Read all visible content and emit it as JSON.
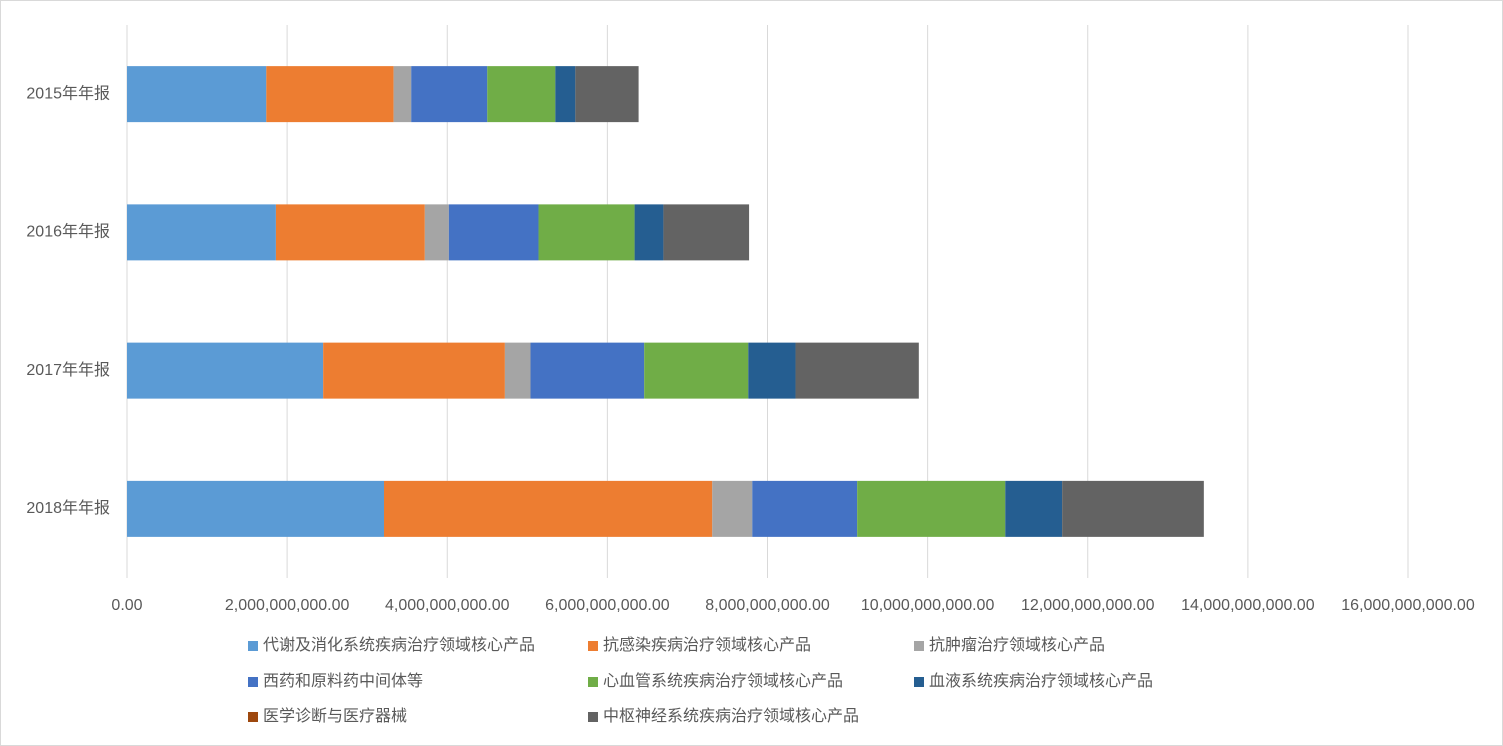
{
  "chart_data": {
    "type": "stacked-bar-horizontal",
    "categories": [
      "2015年年报",
      "2016年年报",
      "2017年年报",
      "2018年年报"
    ],
    "series": [
      {
        "name": "代谢及消化系统疾病治疗领域核心产品",
        "color": "#5b9bd5",
        "values": [
          1740000000,
          1860000000,
          2450000000,
          3210000000
        ]
      },
      {
        "name": "抗感染疾病治疗领域核心产品",
        "color": "#ed7d31",
        "values": [
          1590000000,
          1860000000,
          2270000000,
          4100000000
        ]
      },
      {
        "name": "抗肿瘤治疗领域核心产品",
        "color": "#a5a5a5",
        "values": [
          220000000,
          300000000,
          320000000,
          500000000
        ]
      },
      {
        "name": "西药和原料药中间体等",
        "color": "#4472c4",
        "values": [
          950000000,
          1120000000,
          1420000000,
          1310000000
        ]
      },
      {
        "name": "心血管系统疾病治疗领域核心产品",
        "color": "#70ad47",
        "values": [
          850000000,
          1200000000,
          1300000000,
          1850000000
        ]
      },
      {
        "name": "血液系统疾病治疗领域核心产品",
        "color": "#255e91",
        "values": [
          250000000,
          360000000,
          590000000,
          710000000
        ]
      },
      {
        "name": "医学诊断与医疗器械",
        "color": "#9e480e",
        "values": [
          0,
          0,
          0,
          0
        ]
      },
      {
        "name": "中枢神经系统疾病治疗领域核心产品",
        "color": "#636363",
        "values": [
          790000000,
          1070000000,
          1540000000,
          1770000000
        ]
      }
    ],
    "xlim": [
      0,
      16000000000
    ],
    "xticks": [
      {
        "value": 0,
        "label": "0.00"
      },
      {
        "value": 2000000000,
        "label": "2,000,000,000.00"
      },
      {
        "value": 4000000000,
        "label": "4,000,000,000.00"
      },
      {
        "value": 6000000000,
        "label": "6,000,000,000.00"
      },
      {
        "value": 8000000000,
        "label": "8,000,000,000.00"
      },
      {
        "value": 10000000000,
        "label": "10,000,000,000.00"
      },
      {
        "value": 12000000000,
        "label": "12,000,000,000.00"
      },
      {
        "value": 14000000000,
        "label": "14,000,000,000.00"
      },
      {
        "value": 16000000000,
        "label": "16,000,000,000.00"
      }
    ],
    "grid": true,
    "legend": "bottom"
  }
}
